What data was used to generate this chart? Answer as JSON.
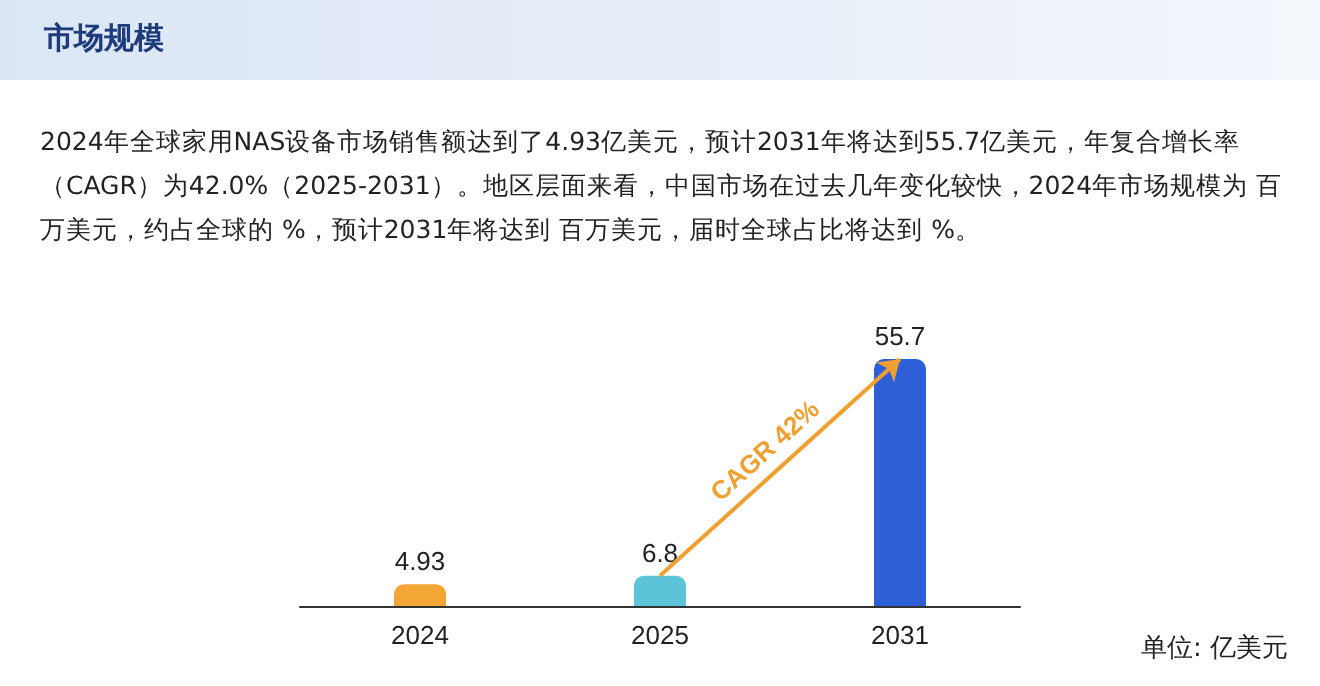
{
  "chart_data": {
    "type": "bar",
    "title": "市场规模",
    "subtitle": "2024年全球家用NAS设备市场销售额达到了4.93亿美元，预计2031年将达到55.7亿美元，年复合增长率（CAGR）为42.0%（2025-2031）。地区层面来看，中国市场在过去几年变化较快，2024年市场规模为 百万美元，约占全球的 %，预计2031年将达到 百万美元，届时全球占比将达到 %。",
    "categories": [
      "2024",
      "2025",
      "2031"
    ],
    "values": [
      4.93,
      6.8,
      55.7
    ],
    "colors": [
      "#f3a535",
      "#5cc3d8",
      "#2f5fd6"
    ],
    "data_labels": true,
    "annotations": [
      "CAGR 42%",
      "单位: 亿美元"
    ]
  }
}
